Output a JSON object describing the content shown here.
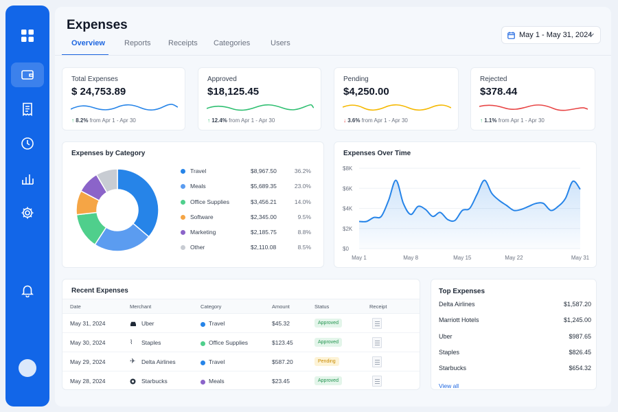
{
  "nav": {
    "items": [
      {
        "icon": "grid-icon"
      },
      {
        "icon": "wallet-icon"
      },
      {
        "icon": "receipt-icon"
      },
      {
        "icon": "clock-icon"
      },
      {
        "icon": "bar-chart-icon"
      },
      {
        "icon": "gear-icon"
      }
    ],
    "bottom_icon": "bell-icon"
  },
  "header": {
    "title": "Expenses",
    "date_range": "May 1 - May 31, 2024",
    "tabs": [
      "Overview",
      "Reports",
      "Receipts",
      "Categories",
      "Users"
    ],
    "active_tab": "Overview"
  },
  "colors": {
    "accent": "#1d66e0",
    "blue": "#2684e8",
    "green": "#2fbf71",
    "amber": "#f5b800",
    "red": "#e84545"
  },
  "stats": [
    {
      "label": "Total Expenses",
      "value": "$ 24,753.89",
      "change": "8.2%",
      "direction": "up",
      "period": "from Apr 1 - Apr 30",
      "color": "#2684e8"
    },
    {
      "label": "Approved",
      "value": "$18,125.45",
      "change": "12.4%",
      "direction": "up",
      "period": "from Apr 1 - Apr 30",
      "color": "#2fbf71"
    },
    {
      "label": "Pending",
      "value": "$4,250.00",
      "change": "3.6%",
      "direction": "down",
      "period": "from Apr 1 - Apr 30",
      "color": "#f5b800"
    },
    {
      "label": "Rejected",
      "value": "$378.44",
      "change": "1.1%",
      "direction": "up",
      "period": "from Apr 1 - Apr 30",
      "color": "#e84545"
    }
  ],
  "category_card": {
    "title": "Expenses by Category"
  },
  "over_time_card": {
    "title": "Expenses Over Time"
  },
  "chart_data": [
    {
      "type": "pie",
      "title": "Expenses by Category",
      "categories": [
        "Travel",
        "Meals",
        "Office Supplies",
        "Software",
        "Marketing",
        "Other"
      ],
      "values": [
        36.2,
        23.0,
        14.0,
        9.5,
        8.8,
        8.5
      ],
      "amounts": [
        "$8,967.50",
        "$5,689.35",
        "$3,456.21",
        "$2,345.00",
        "$2,185.75",
        "$2,110.08"
      ],
      "percent_labels": [
        "36.2%",
        "23.0%",
        "14.0%",
        "9.5%",
        "8.8%",
        "8.5%"
      ],
      "colors": [
        "#2684e8",
        "#5b9cf0",
        "#4fcf8c",
        "#f5a545",
        "#8b64c9",
        "#c8ccd3"
      ]
    },
    {
      "type": "area",
      "title": "Expenses Over Time",
      "x": [
        1,
        2,
        3,
        4,
        5,
        6,
        7,
        8,
        9,
        10,
        11,
        12,
        13,
        14,
        15,
        16,
        17,
        18,
        19,
        20,
        21,
        22,
        23,
        24,
        25,
        26,
        27,
        28,
        29,
        30,
        31
      ],
      "y": [
        2700,
        2700,
        3100,
        3200,
        4800,
        6800,
        4500,
        3400,
        4200,
        3900,
        3200,
        3600,
        2900,
        2800,
        3800,
        4000,
        5400,
        6800,
        5500,
        4800,
        4300,
        3800,
        3900,
        4200,
        4500,
        4500,
        3800,
        4200,
        5000,
        6700,
        5900
      ],
      "x_ticks": [
        "May 1",
        "May 8",
        "May 15",
        "May 22",
        "May 31"
      ],
      "x_tick_days": [
        1,
        8,
        15,
        22,
        31
      ],
      "y_ticks": [
        "$0",
        "$2K",
        "$4K",
        "$6K",
        "$8K"
      ],
      "ylim": [
        0,
        8000
      ],
      "color": "#2684e8"
    }
  ],
  "recent": {
    "title": "Recent Expenses",
    "columns": [
      "Date",
      "Merchant",
      "Category",
      "Amount",
      "Status",
      "Receipt"
    ],
    "rows": [
      {
        "date": "May 31, 2024",
        "merchant": "Uber",
        "merchant_icon": "car-icon",
        "category": "Travel",
        "category_color": "#2684e8",
        "amount": "$45.32",
        "status": "Approved"
      },
      {
        "date": "May 30, 2024",
        "merchant": "Staples",
        "merchant_icon": "paperclip-icon",
        "category": "Office Supplies",
        "category_color": "#4fcf8c",
        "amount": "$123.45",
        "status": "Approved"
      },
      {
        "date": "May 29, 2024",
        "merchant": "Delta Airlines",
        "merchant_icon": "airplane-icon",
        "category": "Travel",
        "category_color": "#2684e8",
        "amount": "$587.20",
        "status": "Pending"
      },
      {
        "date": "May 28, 2024",
        "merchant": "Starbucks",
        "merchant_icon": "starbucks-logo-icon",
        "category": "Meals",
        "category_color": "#8b64c9",
        "amount": "$23.45",
        "status": "Approved"
      }
    ]
  },
  "top": {
    "title": "Top Expenses",
    "items": [
      {
        "name": "Delta Airlines",
        "amount": "$1,587.20"
      },
      {
        "name": "Marriott Hotels",
        "amount": "$1,245.00"
      },
      {
        "name": "Uber",
        "amount": "$987.65"
      },
      {
        "name": "Staples",
        "amount": "$826.45"
      },
      {
        "name": "Starbucks",
        "amount": "$654.32"
      }
    ],
    "view_all": "View all"
  }
}
